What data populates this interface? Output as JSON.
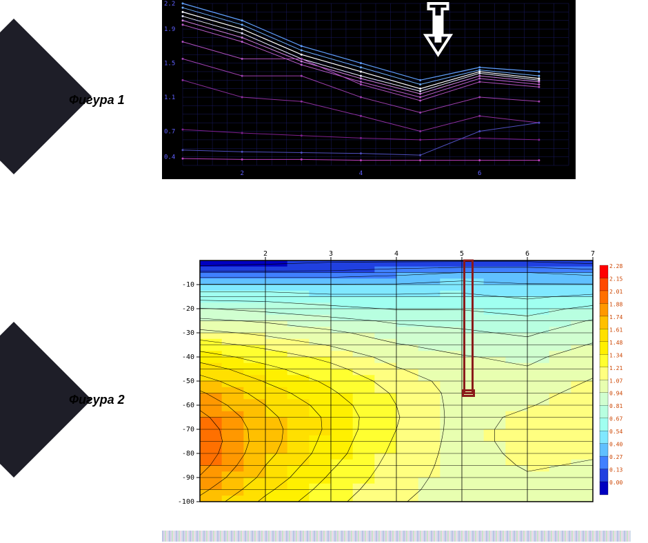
{
  "labels": {
    "figure1": "Фигура 1",
    "figure2": "Фигура 2"
  },
  "chevron_color": "#1e1e28",
  "figure1": {
    "type": "line",
    "background": "#000000",
    "grid_color": "#1a1a60",
    "axis_label_color": "#6060ff",
    "xlim": [
      1,
      7.5
    ],
    "ylim": [
      0.3,
      2.2
    ],
    "xticks": [
      2,
      4,
      6
    ],
    "yticks": [
      0.4,
      0.7,
      1.1,
      1.5,
      1.9,
      2.2
    ],
    "grid_x_step": 0.25,
    "grid_y_step": 0.1,
    "tick_fontsize": 9,
    "arrow": {
      "x": 5.3,
      "y_top": 2.2,
      "y_bot": 1.6,
      "color": "#ffffff",
      "stroke_width": 5
    },
    "series": [
      {
        "color": "#60a0ff",
        "width": 1.2,
        "y": [
          2.2,
          2.0,
          1.7,
          1.5,
          1.3,
          1.45,
          1.4
        ]
      },
      {
        "color": "#70b0ff",
        "width": 1.0,
        "y": [
          2.15,
          1.95,
          1.65,
          1.45,
          1.25,
          1.42,
          1.35
        ]
      },
      {
        "color": "#ffffff",
        "width": 1.2,
        "y": [
          2.1,
          1.9,
          1.6,
          1.4,
          1.2,
          1.4,
          1.32
        ]
      },
      {
        "color": "#e8e8ff",
        "width": 1.0,
        "y": [
          2.05,
          1.85,
          1.55,
          1.35,
          1.17,
          1.38,
          1.3
        ]
      },
      {
        "color": "#d080e0",
        "width": 1.0,
        "y": [
          2.0,
          1.8,
          1.52,
          1.32,
          1.14,
          1.35,
          1.28
        ]
      },
      {
        "color": "#c060d0",
        "width": 1.0,
        "y": [
          1.95,
          1.75,
          1.48,
          1.28,
          1.1,
          1.32,
          1.25
        ]
      },
      {
        "color": "#b050c0",
        "width": 1.0,
        "y": [
          1.75,
          1.55,
          1.55,
          1.25,
          1.06,
          1.28,
          1.22
        ]
      },
      {
        "color": "#a040b0",
        "width": 1.0,
        "y": [
          1.55,
          1.35,
          1.35,
          1.1,
          0.92,
          1.1,
          1.05
        ]
      },
      {
        "color": "#9030a0",
        "width": 1.0,
        "y": [
          1.3,
          1.1,
          1.05,
          0.88,
          0.7,
          0.88,
          0.8
        ]
      },
      {
        "color": "#802090",
        "width": 1.0,
        "y": [
          0.72,
          0.68,
          0.65,
          0.62,
          0.6,
          0.62,
          0.6
        ]
      },
      {
        "color": "#5050c0",
        "width": 1.0,
        "y": [
          0.48,
          0.46,
          0.45,
          0.44,
          0.42,
          0.7,
          0.8
        ]
      },
      {
        "color": "#c040c0",
        "width": 1.0,
        "y": [
          0.38,
          0.37,
          0.37,
          0.36,
          0.36,
          0.36,
          0.36
        ]
      }
    ],
    "series_x": [
      1,
      2,
      3,
      4,
      5,
      6,
      7
    ]
  },
  "figure2": {
    "type": "heatmap",
    "background": "#ffffff",
    "grid_color": "#000000",
    "axis_label_color": "#000000",
    "tick_fontsize": 10,
    "xlim": [
      1,
      7
    ],
    "ylim": [
      -100,
      0
    ],
    "xticks": [
      2,
      3,
      4,
      5,
      6,
      7
    ],
    "yticks": [
      -10,
      -20,
      -30,
      -40,
      -50,
      -60,
      -70,
      -80,
      -90,
      -100
    ],
    "grid_y_step": 5,
    "colorscale": [
      {
        "value": 2.28,
        "color": "#ff0000"
      },
      {
        "value": 2.15,
        "color": "#ff4800"
      },
      {
        "value": 2.01,
        "color": "#ff7000"
      },
      {
        "value": 1.88,
        "color": "#ff9800"
      },
      {
        "value": 1.74,
        "color": "#ffc000"
      },
      {
        "value": 1.61,
        "color": "#ffe000"
      },
      {
        "value": 1.48,
        "color": "#fff000"
      },
      {
        "value": 1.34,
        "color": "#ffff30"
      },
      {
        "value": 1.21,
        "color": "#ffff80"
      },
      {
        "value": 1.07,
        "color": "#e8ffb0"
      },
      {
        "value": 0.94,
        "color": "#d0ffd0"
      },
      {
        "value": 0.81,
        "color": "#b8ffe0"
      },
      {
        "value": 0.67,
        "color": "#a0fff0"
      },
      {
        "value": 0.54,
        "color": "#80e8ff"
      },
      {
        "value": 0.4,
        "color": "#60c0ff"
      },
      {
        "value": 0.27,
        "color": "#4080ff"
      },
      {
        "value": 0.13,
        "color": "#2040e0"
      },
      {
        "value": 0.0,
        "color": "#0000c0"
      }
    ],
    "legend_fontsize": 8,
    "legend_text_color": "#cc4400",
    "borehole": {
      "x": 5.1,
      "y_top": 0,
      "y_bot": -55,
      "color": "#8a1a1a",
      "width": 3
    },
    "grid": {
      "nx": 7,
      "ny": 21,
      "x_values": [
        1,
        2,
        3,
        4,
        5,
        6,
        7
      ],
      "y_values": [
        0,
        -5,
        -10,
        -15,
        -20,
        -25,
        -30,
        -35,
        -40,
        -45,
        -50,
        -55,
        -60,
        -65,
        -70,
        -75,
        -80,
        -85,
        -90,
        -95,
        -100
      ],
      "z": [
        [
          0.0,
          0.05,
          0.1,
          0.1,
          0.1,
          0.1,
          0.05
        ],
        [
          0.3,
          0.3,
          0.3,
          0.35,
          0.4,
          0.4,
          0.35
        ],
        [
          0.55,
          0.55,
          0.55,
          0.55,
          0.6,
          0.55,
          0.55
        ],
        [
          0.75,
          0.75,
          0.7,
          0.7,
          0.7,
          0.65,
          0.7
        ],
        [
          0.95,
          0.9,
          0.85,
          0.8,
          0.8,
          0.75,
          0.85
        ],
        [
          1.1,
          1.05,
          0.98,
          0.92,
          0.9,
          0.85,
          0.95
        ],
        [
          1.25,
          1.18,
          1.1,
          1.0,
          0.96,
          0.92,
          1.02
        ],
        [
          1.4,
          1.3,
          1.2,
          1.08,
          1.02,
          0.98,
          1.08
        ],
        [
          1.55,
          1.42,
          1.3,
          1.16,
          1.08,
          1.04,
          1.14
        ],
        [
          1.68,
          1.52,
          1.38,
          1.22,
          1.12,
          1.08,
          1.18
        ],
        [
          1.8,
          1.6,
          1.45,
          1.28,
          1.15,
          1.12,
          1.22
        ],
        [
          1.9,
          1.68,
          1.5,
          1.32,
          1.16,
          1.16,
          1.26
        ],
        [
          1.98,
          1.74,
          1.55,
          1.34,
          1.16,
          1.2,
          1.28
        ],
        [
          2.05,
          1.78,
          1.58,
          1.35,
          1.16,
          1.24,
          1.28
        ],
        [
          2.1,
          1.8,
          1.58,
          1.34,
          1.16,
          1.26,
          1.26
        ],
        [
          2.12,
          1.8,
          1.56,
          1.32,
          1.16,
          1.26,
          1.24
        ],
        [
          2.1,
          1.78,
          1.54,
          1.3,
          1.16,
          1.24,
          1.22
        ],
        [
          2.06,
          1.74,
          1.5,
          1.28,
          1.16,
          1.22,
          1.2
        ],
        [
          2.0,
          1.7,
          1.46,
          1.26,
          1.16,
          1.2,
          1.18
        ],
        [
          1.92,
          1.64,
          1.42,
          1.24,
          1.16,
          1.18,
          1.16
        ],
        [
          1.84,
          1.58,
          1.38,
          1.22,
          1.16,
          1.16,
          1.14
        ]
      ]
    }
  }
}
